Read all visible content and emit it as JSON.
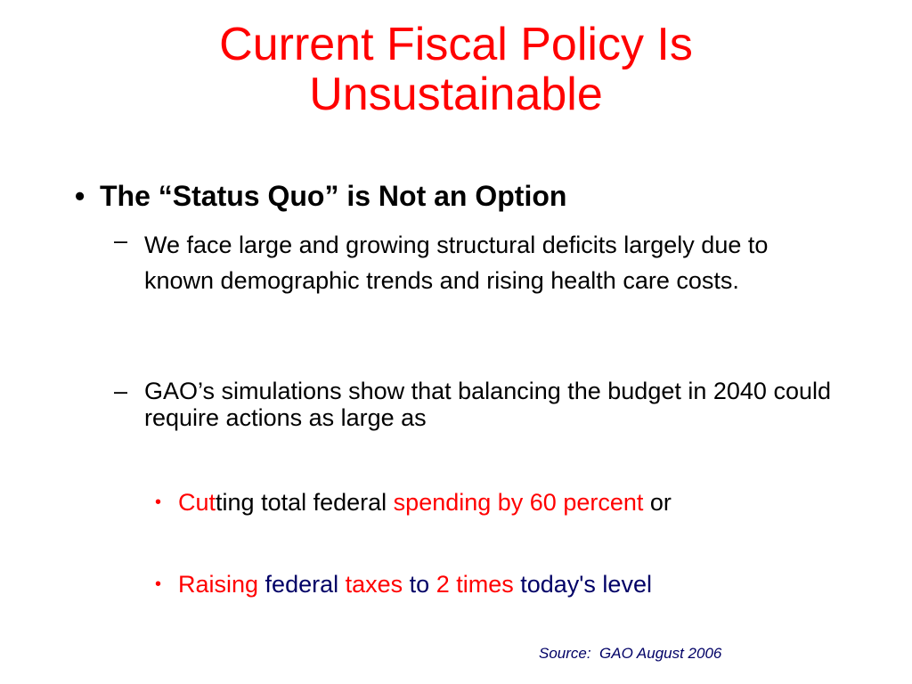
{
  "title": {
    "line1": "Current Fiscal Policy Is",
    "line2": "Unsustainable"
  },
  "colors": {
    "title": "#ff0000",
    "accent_red": "#ff0000",
    "navy": "#000066",
    "body_text": "#000000",
    "background": "#ffffff"
  },
  "bullet_main": {
    "marker": "•",
    "text": "The “Status Quo” is Not an Option"
  },
  "dash_items": [
    {
      "marker": "–",
      "text": "We face large and growing structural deficits largely due to known demographic trends and rising health care costs."
    },
    {
      "marker": "–",
      "text": "GAO’s simulations show that balancing the budget in 2040 could require actions as large as"
    }
  ],
  "sub_bullets": [
    {
      "marker": "•",
      "segments": [
        {
          "text": "Cut",
          "color": "red"
        },
        {
          "text": "ting total federal ",
          "color": "black"
        },
        {
          "text": "spending by 60 percent",
          "color": "red"
        },
        {
          "text": " or",
          "color": "black"
        }
      ]
    },
    {
      "marker": "•",
      "segments": [
        {
          "text": "Raising",
          "color": "red"
        },
        {
          "text": " federal ",
          "color": "navy"
        },
        {
          "text": "taxes",
          "color": "red"
        },
        {
          "text": " to ",
          "color": "navy"
        },
        {
          "text": "2 times",
          "color": "red"
        },
        {
          "text": " today's level",
          "color": "navy"
        }
      ]
    }
  ],
  "source": "Source:  GAO August 2006"
}
